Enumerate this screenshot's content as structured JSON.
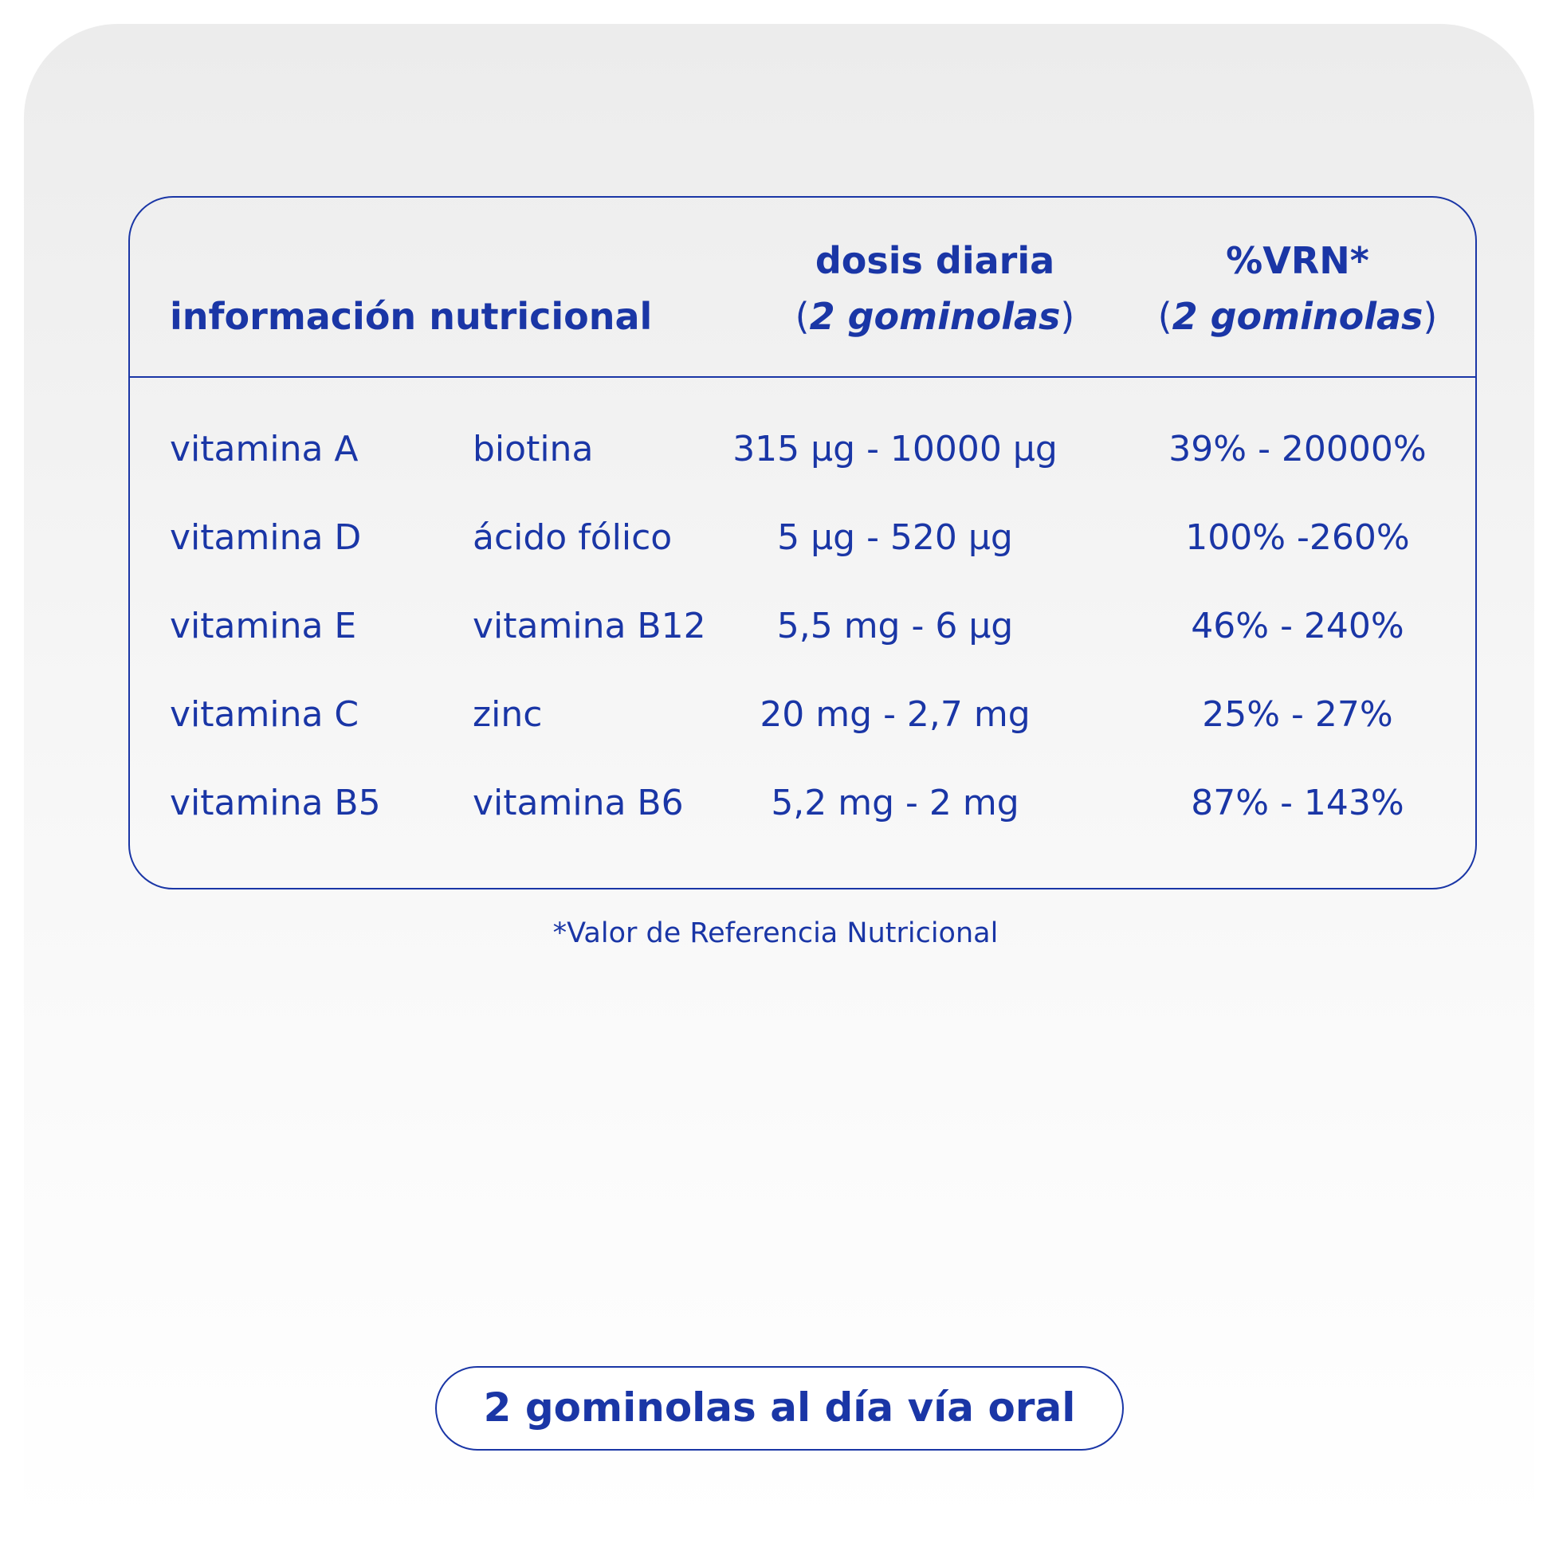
{
  "table": {
    "header": {
      "nutrition_info": "información nutricional",
      "daily_dose": "dosis diaria",
      "daily_dose_sub_open": "(",
      "daily_dose_sub_text": "2 gominolas",
      "daily_dose_sub_close": ")",
      "vrn": "%VRN*",
      "vrn_sub_open": "(",
      "vrn_sub_text": "2 gominolas",
      "vrn_sub_close": ")"
    },
    "rows": [
      {
        "nutrient_1": "vitamina A",
        "nutrient_2": "biotina",
        "dose": "315 µg - 10000 µg",
        "vrn": "39% - 20000%"
      },
      {
        "nutrient_1": "vitamina D",
        "nutrient_2": "ácido fólico",
        "dose": "5 µg - 520 µg",
        "vrn": "100% -260%"
      },
      {
        "nutrient_1": "vitamina E",
        "nutrient_2": "vitamina B12",
        "dose": "5,5 mg - 6 µg",
        "vrn": "46% - 240%"
      },
      {
        "nutrient_1": "vitamina C",
        "nutrient_2": "zinc",
        "dose": "20 mg - 2,7 mg",
        "vrn": "25% - 27%"
      },
      {
        "nutrient_1": "vitamina B5",
        "nutrient_2": "vitamina B6",
        "dose": "5,2 mg - 2 mg",
        "vrn": "87% - 143%"
      }
    ]
  },
  "footnote": "*Valor de Referencia Nutricional",
  "dosage_pill": "2 gominolas al día vía oral",
  "colors": {
    "primary": "#1a36a6",
    "background_top": "#ececec",
    "background_bottom": "#ffffff"
  }
}
